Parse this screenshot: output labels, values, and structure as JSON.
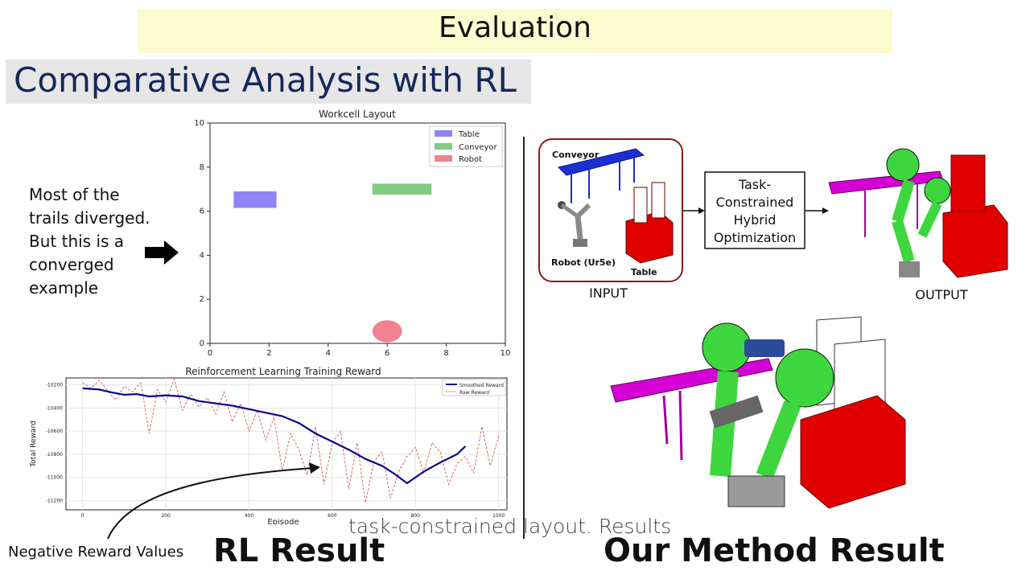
{
  "header": {
    "title": "Evaluation"
  },
  "subtitle": "Comparative Analysis with RL",
  "note": {
    "lines": [
      "Most of the",
      "trails diverged.",
      "But this is a",
      "converged",
      "example"
    ]
  },
  "labels": {
    "rl_result": "RL Result",
    "our_result": "Our Method Result",
    "negative_reward": "Negative Reward Values",
    "caption": "task-constrained layout. Results"
  },
  "diagram": {
    "input_label": "INPUT",
    "output_label": "OUTPUT",
    "conveyor_label": "Conveyor",
    "robot_label": "Robot (Ur5e)",
    "table_label": "Table",
    "process_lines": [
      "Task-",
      "Constrained",
      "Hybrid",
      "Optimization"
    ]
  },
  "colors": {
    "table": "#7b6ff0",
    "conveyor": "#6fc36f",
    "robot": "#ef6b7a",
    "smoothed": "#0a0a8a",
    "raw": "#d16a6a",
    "banner": "#fbfbd0"
  },
  "chart_data": [
    {
      "type": "scatter",
      "title": "Workcell Layout",
      "xlim": [
        0,
        10
      ],
      "ylim": [
        0,
        10
      ],
      "xticks": [
        "0",
        "2",
        "4",
        "6",
        "8",
        "10"
      ],
      "yticks": [
        "0",
        "2",
        "4",
        "6",
        "8",
        "10"
      ],
      "legend": {
        "position": "top-right",
        "entries": [
          "Table",
          "Conveyor",
          "Robot"
        ]
      },
      "objects": [
        {
          "name": "Table",
          "shape": "rect",
          "x0": 0.8,
          "x1": 2.25,
          "y0": 6.15,
          "y1": 6.9
        },
        {
          "name": "Conveyor",
          "shape": "rect",
          "x0": 5.5,
          "x1": 7.5,
          "y0": 6.75,
          "y1": 7.25
        },
        {
          "name": "Robot",
          "shape": "ellipse",
          "cx": 6.0,
          "cy": 0.55,
          "rx": 0.5,
          "ry": 0.5
        }
      ]
    },
    {
      "type": "line",
      "title": "Reinforcement Learning Training Reward",
      "xlabel": "Episode",
      "ylabel": "Total Reward",
      "xlim": [
        -40,
        1020
      ],
      "ylim": [
        -11280,
        -10140
      ],
      "xticks": [
        "0",
        "200",
        "400",
        "600",
        "800",
        "1000"
      ],
      "yticks": [
        "-10200",
        "-10400",
        "-10600",
        "-10800",
        "-11000",
        "-11200"
      ],
      "legend": {
        "position": "top-right",
        "entries": [
          "Smoothed Reward",
          "Raw Reward"
        ]
      },
      "series": [
        {
          "name": "Smoothed Reward",
          "x": [
            0,
            40,
            70,
            100,
            130,
            160,
            200,
            240,
            280,
            320,
            360,
            400,
            440,
            480,
            520,
            560,
            600,
            640,
            680,
            720,
            750,
            780,
            820,
            860,
            900,
            920
          ],
          "y": [
            -10230,
            -10240,
            -10265,
            -10285,
            -10280,
            -10300,
            -10290,
            -10300,
            -10340,
            -10360,
            -10380,
            -10410,
            -10440,
            -10470,
            -10530,
            -10620,
            -10690,
            -10760,
            -10840,
            -10900,
            -10970,
            -11050,
            -10950,
            -10870,
            -10800,
            -10730
          ]
        },
        {
          "name": "Raw Reward",
          "x": [
            0,
            20,
            40,
            60,
            80,
            100,
            120,
            140,
            160,
            180,
            200,
            220,
            240,
            260,
            280,
            300,
            320,
            340,
            360,
            380,
            400,
            420,
            440,
            460,
            480,
            500,
            520,
            540,
            560,
            580,
            600,
            620,
            640,
            660,
            680,
            700,
            720,
            740,
            760,
            780,
            800,
            820,
            840,
            860,
            880,
            900,
            920,
            940,
            960,
            980,
            1000
          ],
          "y": [
            -10180,
            -10230,
            -10160,
            -10250,
            -10330,
            -10210,
            -10260,
            -10180,
            -10620,
            -10240,
            -10350,
            -10150,
            -10420,
            -10280,
            -10390,
            -10310,
            -10450,
            -10260,
            -10520,
            -10360,
            -10600,
            -10420,
            -10680,
            -10480,
            -10940,
            -10620,
            -10760,
            -10980,
            -10560,
            -11060,
            -10700,
            -10600,
            -11100,
            -10700,
            -11220,
            -10860,
            -10780,
            -11180,
            -10950,
            -10820,
            -10740,
            -10960,
            -10700,
            -10780,
            -11060,
            -10880,
            -10820,
            -10960,
            -10560,
            -10900,
            -10640
          ]
        }
      ]
    }
  ]
}
